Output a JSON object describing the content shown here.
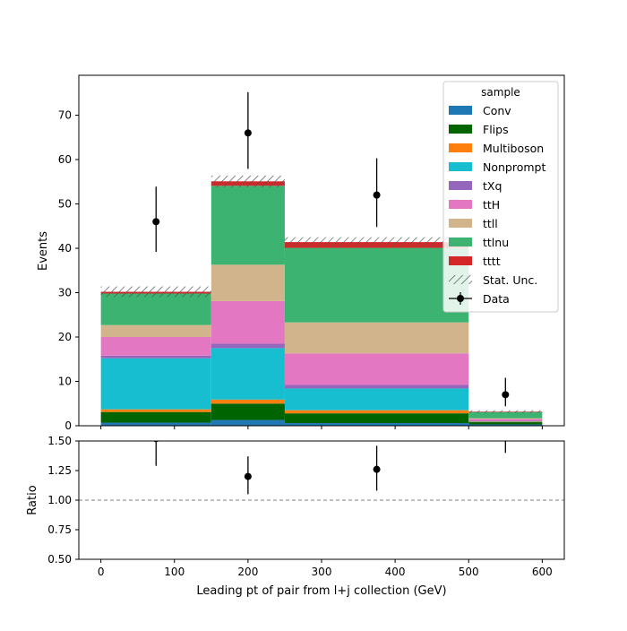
{
  "chart_data": {
    "type": "bar",
    "xlabel": "Leading pt of pair from l+j collection (GeV)",
    "ylabel_top": "Events",
    "ylabel_bottom": "Ratio",
    "xlim": [
      -30,
      630
    ],
    "ylim_top": [
      0,
      79
    ],
    "ylim_bottom": [
      0.5,
      1.5
    ],
    "x_ticks": [
      0,
      100,
      200,
      300,
      400,
      500,
      600
    ],
    "y_ticks_top": [
      0,
      10,
      20,
      30,
      40,
      50,
      60,
      70
    ],
    "y_ticks_bottom": [
      0.5,
      0.75,
      1.0,
      1.25,
      1.5
    ],
    "y_tick_labels_bottom": [
      "0.50",
      "0.75",
      "1.00",
      "1.25",
      "1.50"
    ],
    "bin_edges": [
      0,
      150,
      250,
      500,
      600
    ],
    "stacked": true,
    "legend_title": "sample",
    "legend_position": "top-right",
    "series": [
      {
        "name": "Conv",
        "color": "#1f77b4",
        "values": [
          0.7,
          1.3,
          0.6,
          0.3
        ]
      },
      {
        "name": "Flips",
        "color": "#006400",
        "values": [
          2.4,
          3.7,
          2.2,
          0.5
        ]
      },
      {
        "name": "Multiboson",
        "color": "#ff7f0e",
        "values": [
          0.6,
          0.9,
          0.7,
          0.1
        ]
      },
      {
        "name": "Nonprompt",
        "color": "#17becf",
        "values": [
          11.5,
          11.6,
          4.9,
          0.1
        ]
      },
      {
        "name": "tXq",
        "color": "#9467bd",
        "values": [
          0.6,
          1.0,
          0.8,
          0.1
        ]
      },
      {
        "name": "ttH",
        "color": "#e377c2",
        "values": [
          4.2,
          9.6,
          7.1,
          0.4
        ]
      },
      {
        "name": "ttll",
        "color": "#d2b48c",
        "values": [
          2.7,
          8.2,
          7.0,
          0.2
        ]
      },
      {
        "name": "ttlnu",
        "color": "#3cb371",
        "values": [
          7.1,
          17.8,
          16.8,
          1.4
        ]
      },
      {
        "name": "tttt",
        "color": "#d62728",
        "values": [
          0.4,
          1.0,
          1.3,
          0.1
        ]
      }
    ],
    "stat_unc": {
      "name": "Stat. Unc.",
      "totals": [
        30.2,
        55.1,
        41.4,
        3.2
      ],
      "errors": [
        1.2,
        1.3,
        1.1,
        0.3
      ]
    },
    "data": {
      "name": "Data",
      "x": [
        75,
        200,
        375,
        550
      ],
      "y": [
        46,
        66,
        52,
        7
      ],
      "yerr_low": [
        6.8,
        8.1,
        7.2,
        2.6
      ],
      "yerr_high": [
        7.9,
        9.2,
        8.3,
        3.8
      ]
    },
    "ratio": {
      "x": [
        75,
        200,
        375,
        550
      ],
      "y": [
        1.52,
        1.2,
        1.26,
        2.2
      ],
      "yerr_low": [
        0.23,
        0.15,
        0.18,
        0.8
      ],
      "yerr_high": [
        0.27,
        0.17,
        0.2,
        1.2
      ],
      "reference_line": 1.0
    }
  }
}
